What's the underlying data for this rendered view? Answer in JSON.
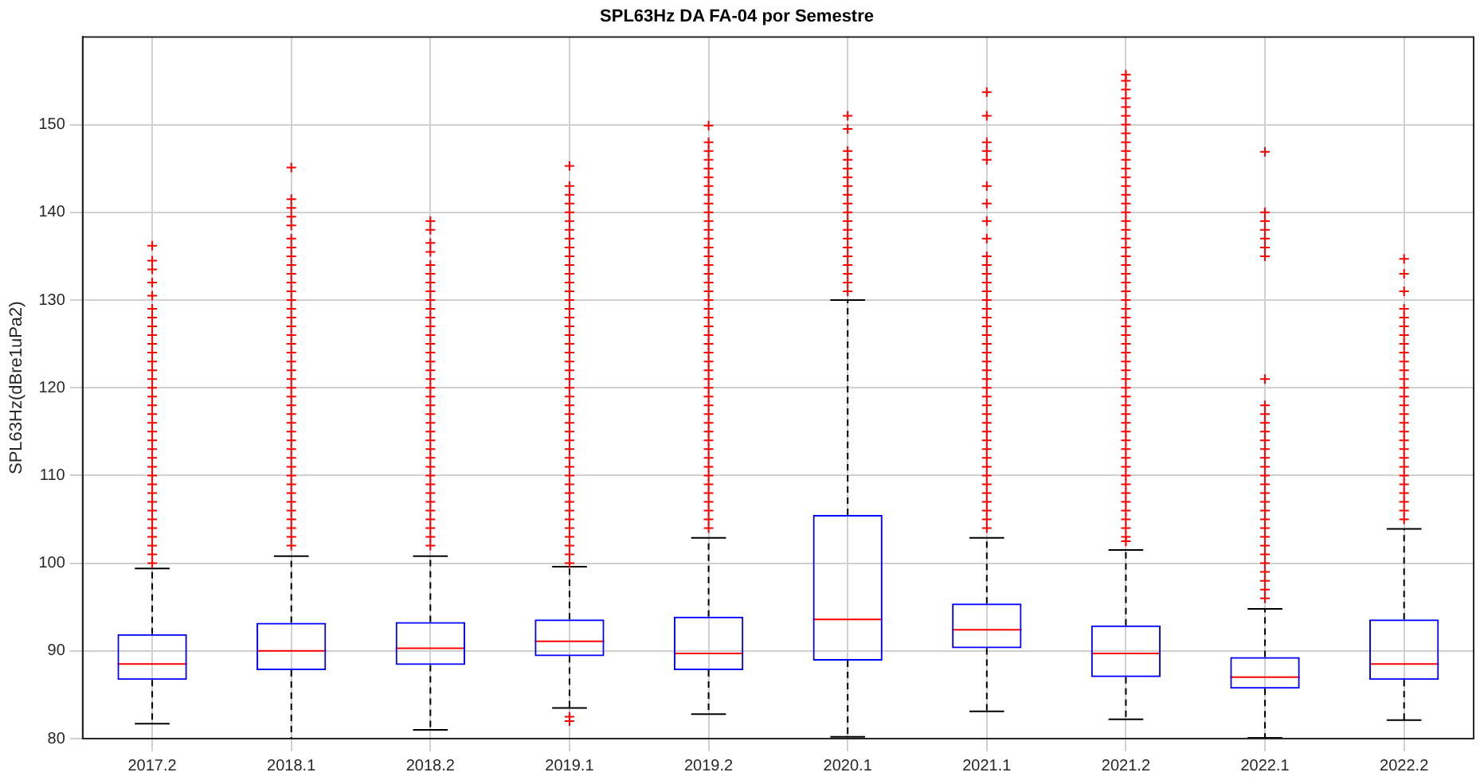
{
  "chart_data": {
    "type": "box",
    "title": "SPL63Hz DA FA-04 por Semestre",
    "ylabel": "SPL63Hz(dBre1uPa2)",
    "categories": [
      "2017.2",
      "2018.1",
      "2018.2",
      "2019.1",
      "2019.2",
      "2020.1",
      "2021.1",
      "2021.2",
      "2022.1",
      "2022.2"
    ],
    "color": "#0000ff",
    "grid": true,
    "marker": "cross",
    "ylim": [
      80,
      160
    ],
    "yticks": [
      80,
      90,
      100,
      110,
      120,
      130,
      140,
      150
    ],
    "boxes": [
      {
        "low": 81.7,
        "q1": 86.7,
        "median": 88.5,
        "q3": 91.9,
        "high": 99.4,
        "outliers": [
          100,
          101,
          102,
          103,
          104,
          105,
          106,
          107,
          108,
          109,
          110,
          111,
          112,
          113,
          114,
          115,
          116,
          117,
          118,
          119,
          120,
          121,
          122,
          123,
          124,
          125,
          126,
          127,
          128,
          129,
          130.5,
          132,
          133.5,
          134.5,
          136.2
        ]
      },
      {
        "low": 80,
        "q1": 87.8,
        "median": 90,
        "q3": 93.2,
        "high": 100.8,
        "outliers": [
          102,
          103,
          104,
          105,
          106,
          107,
          108,
          109,
          110,
          111,
          112,
          113,
          114,
          115,
          116,
          117,
          118,
          119,
          120,
          121,
          122,
          123,
          124,
          125,
          126,
          127,
          128,
          129,
          130,
          131,
          132,
          133,
          134,
          135,
          136,
          137,
          138.5,
          139.5,
          140.5,
          141.5,
          145.1
        ]
      },
      {
        "low": 81,
        "q1": 88.4,
        "median": 90.3,
        "q3": 93.3,
        "high": 100.8,
        "outliers": [
          102,
          103,
          104,
          105,
          106,
          107,
          108,
          109,
          110,
          111,
          112,
          113,
          114,
          115,
          116,
          117,
          118,
          119,
          120,
          121,
          122,
          123,
          124,
          125,
          126,
          127,
          128,
          129,
          130,
          131,
          132,
          133,
          134,
          135.5,
          136.5,
          138,
          139
        ]
      },
      {
        "low": 83.5,
        "q1": 89.4,
        "median": 91.1,
        "q3": 93.6,
        "high": 99.6,
        "outliers": [
          82,
          82.5,
          100,
          101,
          102,
          103,
          104,
          105,
          106,
          107,
          108,
          109,
          110,
          111,
          112,
          113,
          114,
          115,
          116,
          117,
          118,
          119,
          120,
          121,
          122,
          123,
          124,
          125,
          126,
          127,
          128,
          129,
          130,
          131,
          132,
          133,
          134,
          135,
          136,
          137,
          138,
          139,
          140,
          141,
          142,
          143,
          145.3
        ]
      },
      {
        "low": 82.8,
        "q1": 87.8,
        "median": 89.7,
        "q3": 93.9,
        "high": 102.9,
        "outliers": [
          104,
          105,
          106,
          107,
          108,
          109,
          110,
          111,
          112,
          113,
          114,
          115,
          116,
          117,
          118,
          119,
          120,
          121,
          122,
          123,
          124,
          125,
          126,
          127,
          128,
          129,
          130,
          131,
          132,
          133,
          134,
          135,
          136,
          137,
          138,
          139,
          140,
          141,
          142,
          143,
          144,
          145,
          146,
          147,
          148,
          149.9
        ]
      },
      {
        "low": 80.2,
        "q1": 88.9,
        "median": 93.6,
        "q3": 105.5,
        "high": 130,
        "outliers": [
          131,
          132,
          133,
          134,
          135,
          136,
          137,
          138,
          139,
          140,
          141,
          142,
          143,
          144,
          145,
          146,
          147,
          149.5,
          151
        ]
      },
      {
        "low": 83.1,
        "q1": 90.3,
        "median": 92.4,
        "q3": 95.4,
        "high": 102.9,
        "outliers": [
          104,
          105,
          106,
          107,
          108,
          109,
          110,
          111,
          112,
          113,
          114,
          115,
          116,
          117,
          118,
          119,
          120,
          121,
          122,
          123,
          124,
          125,
          126,
          127,
          128,
          129,
          130,
          131,
          132,
          133,
          134,
          135,
          137,
          139,
          141,
          143,
          146,
          147,
          148,
          151,
          153.7
        ]
      },
      {
        "low": 82.2,
        "q1": 87,
        "median": 89.7,
        "q3": 92.9,
        "high": 101.5,
        "outliers": [
          102.5,
          103,
          104,
          105,
          106,
          107,
          108,
          109,
          110,
          111,
          112,
          113,
          114,
          115,
          116,
          117,
          118,
          119,
          120,
          121,
          122,
          123,
          124,
          125,
          126,
          127,
          128,
          129,
          130,
          131,
          132,
          133,
          134,
          135,
          136,
          137,
          138,
          139,
          140,
          141,
          142,
          143,
          144,
          145,
          146,
          147,
          148,
          149,
          150,
          151,
          152,
          153,
          154,
          155,
          155.7
        ]
      },
      {
        "low": 80.1,
        "q1": 85.7,
        "median": 87,
        "q3": 89.3,
        "high": 94.8,
        "outliers": [
          96,
          97,
          98,
          99,
          100,
          101,
          102,
          103,
          104,
          105,
          106,
          107,
          108,
          109,
          110,
          111,
          112,
          113,
          114,
          115,
          116,
          117,
          118,
          121,
          135,
          136,
          137,
          138,
          139,
          140,
          146.9
        ]
      },
      {
        "low": 82.1,
        "q1": 86.7,
        "median": 88.5,
        "q3": 93.6,
        "high": 103.9,
        "outliers": [
          105,
          106,
          107,
          108,
          109,
          110,
          111,
          112,
          113,
          114,
          115,
          116,
          117,
          118,
          119,
          120,
          121,
          122,
          123,
          124,
          125,
          126,
          127,
          128,
          129,
          131,
          133,
          134.7
        ]
      }
    ]
  }
}
